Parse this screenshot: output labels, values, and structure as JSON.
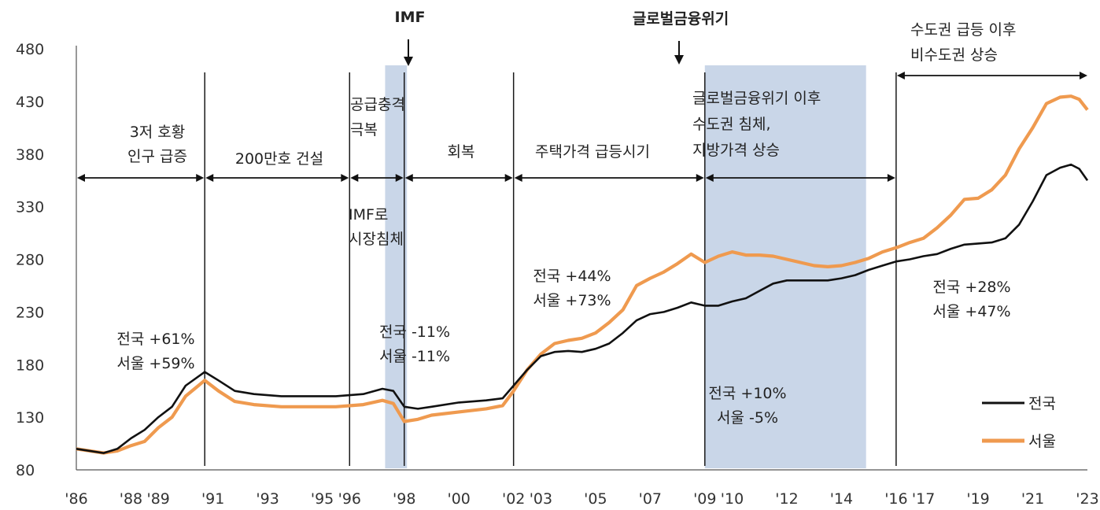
{
  "chart_data": {
    "type": "line",
    "y_ticks": [
      80,
      130,
      180,
      230,
      280,
      330,
      380,
      430,
      480
    ],
    "ylim": [
      80,
      480
    ],
    "x_tick_labels": [
      "'86",
      "'88",
      "'89",
      "'91",
      "'93",
      "'95",
      "'96",
      "'98",
      "'00",
      "'02",
      "'03",
      "'05",
      "'07",
      "'09",
      "'10",
      "'12",
      "'14",
      "'16",
      "'17",
      "'19",
      "'21",
      "'23"
    ],
    "x_tick_years": [
      1986,
      1988,
      1989,
      1991,
      1993,
      1995,
      1996,
      1998,
      2000,
      2002,
      2003,
      2005,
      2007,
      2009,
      2010,
      2012,
      2014,
      2016,
      2017,
      2019,
      2021,
      2023
    ],
    "xlim": [
      1986.0,
      2023.0
    ],
    "dividers": [
      1990.7,
      1996.0,
      1998.0,
      2002.0,
      2009.0,
      2016.0
    ],
    "shaded_ranges": [
      {
        "start": 1997.3,
        "end": 1998.1,
        "color": "#c9d6e8"
      },
      {
        "start": 2009.0,
        "end": 2014.9,
        "color": "#c9d6e8"
      }
    ],
    "colors": {
      "national": "#111111",
      "seoul": "#ef9a4f",
      "shade": "#c9d6e8"
    },
    "series": [
      {
        "name": "전국",
        "points": [
          [
            1986.0,
            100
          ],
          [
            1987.0,
            96
          ],
          [
            1987.5,
            100
          ],
          [
            1988.0,
            110
          ],
          [
            1988.5,
            118
          ],
          [
            1989.0,
            130
          ],
          [
            1989.5,
            140
          ],
          [
            1990.0,
            160
          ],
          [
            1990.7,
            173
          ],
          [
            1991.2,
            165
          ],
          [
            1991.8,
            155
          ],
          [
            1992.5,
            152
          ],
          [
            1993.5,
            150
          ],
          [
            1994.5,
            150
          ],
          [
            1995.5,
            150
          ],
          [
            1996.5,
            152
          ],
          [
            1997.2,
            157
          ],
          [
            1997.6,
            155
          ],
          [
            1998.0,
            140
          ],
          [
            1998.5,
            138
          ],
          [
            1999.0,
            140
          ],
          [
            2000.0,
            144
          ],
          [
            2001.0,
            146
          ],
          [
            2001.6,
            148
          ],
          [
            2002.0,
            160
          ],
          [
            2002.5,
            175
          ],
          [
            2003.0,
            188
          ],
          [
            2003.5,
            192
          ],
          [
            2004.0,
            193
          ],
          [
            2004.5,
            192
          ],
          [
            2005.0,
            195
          ],
          [
            2005.5,
            200
          ],
          [
            2006.0,
            210
          ],
          [
            2006.5,
            222
          ],
          [
            2007.0,
            228
          ],
          [
            2007.5,
            230
          ],
          [
            2008.0,
            234
          ],
          [
            2008.5,
            239
          ],
          [
            2009.0,
            236
          ],
          [
            2009.5,
            236
          ],
          [
            2010.0,
            240
          ],
          [
            2010.5,
            243
          ],
          [
            2011.0,
            250
          ],
          [
            2011.5,
            257
          ],
          [
            2012.0,
            260
          ],
          [
            2012.5,
            260
          ],
          [
            2013.0,
            260
          ],
          [
            2013.5,
            260
          ],
          [
            2014.0,
            262
          ],
          [
            2014.5,
            265
          ],
          [
            2015.0,
            270
          ],
          [
            2015.5,
            274
          ],
          [
            2016.0,
            278
          ],
          [
            2016.5,
            280
          ],
          [
            2017.0,
            283
          ],
          [
            2017.5,
            285
          ],
          [
            2018.0,
            290
          ],
          [
            2018.5,
            294
          ],
          [
            2019.0,
            295
          ],
          [
            2019.5,
            296
          ],
          [
            2020.0,
            300
          ],
          [
            2020.5,
            313
          ],
          [
            2021.0,
            335
          ],
          [
            2021.5,
            360
          ],
          [
            2022.0,
            367
          ],
          [
            2022.4,
            370
          ],
          [
            2022.7,
            366
          ],
          [
            2023.0,
            355
          ]
        ]
      },
      {
        "name": "서울",
        "points": [
          [
            1986.0,
            100
          ],
          [
            1987.0,
            96
          ],
          [
            1987.5,
            98
          ],
          [
            1988.0,
            103
          ],
          [
            1988.5,
            107
          ],
          [
            1989.0,
            120
          ],
          [
            1989.5,
            130
          ],
          [
            1990.0,
            150
          ],
          [
            1990.7,
            165
          ],
          [
            1991.2,
            155
          ],
          [
            1991.8,
            145
          ],
          [
            1992.5,
            142
          ],
          [
            1993.5,
            140
          ],
          [
            1994.5,
            140
          ],
          [
            1995.5,
            140
          ],
          [
            1996.5,
            142
          ],
          [
            1997.2,
            146
          ],
          [
            1997.6,
            143
          ],
          [
            1998.0,
            126
          ],
          [
            1998.5,
            128
          ],
          [
            1999.0,
            132
          ],
          [
            2000.0,
            135
          ],
          [
            2001.0,
            138
          ],
          [
            2001.6,
            141
          ],
          [
            2002.0,
            155
          ],
          [
            2002.5,
            175
          ],
          [
            2003.0,
            190
          ],
          [
            2003.5,
            200
          ],
          [
            2004.0,
            203
          ],
          [
            2004.5,
            205
          ],
          [
            2005.0,
            210
          ],
          [
            2005.5,
            220
          ],
          [
            2006.0,
            232
          ],
          [
            2006.5,
            255
          ],
          [
            2007.0,
            262
          ],
          [
            2007.5,
            268
          ],
          [
            2008.0,
            276
          ],
          [
            2008.5,
            285
          ],
          [
            2009.0,
            277
          ],
          [
            2009.5,
            283
          ],
          [
            2010.0,
            287
          ],
          [
            2010.5,
            284
          ],
          [
            2011.0,
            284
          ],
          [
            2011.5,
            283
          ],
          [
            2012.0,
            280
          ],
          [
            2012.5,
            277
          ],
          [
            2013.0,
            274
          ],
          [
            2013.5,
            273
          ],
          [
            2014.0,
            274
          ],
          [
            2014.5,
            277
          ],
          [
            2015.0,
            281
          ],
          [
            2015.5,
            287
          ],
          [
            2016.0,
            291
          ],
          [
            2016.5,
            296
          ],
          [
            2017.0,
            300
          ],
          [
            2017.5,
            310
          ],
          [
            2018.0,
            322
          ],
          [
            2018.5,
            337
          ],
          [
            2019.0,
            338
          ],
          [
            2019.5,
            346
          ],
          [
            2020.0,
            360
          ],
          [
            2020.5,
            385
          ],
          [
            2021.0,
            405
          ],
          [
            2021.5,
            428
          ],
          [
            2022.0,
            434
          ],
          [
            2022.4,
            435
          ],
          [
            2022.7,
            432
          ],
          [
            2023.0,
            422
          ]
        ]
      }
    ],
    "annotations": {
      "imf_title": "IMF",
      "gfc_title": "글로벌금융위기",
      "p1_line1": "3저 호황",
      "p1_line2": "인구 급증",
      "p2": "200만호 건설",
      "p3_line1": "공급충격",
      "p3_line2": "극복",
      "p4": "회복",
      "p5": "주택가격 급등시기",
      "p6_line1": "글로벌금융위기 이후",
      "p6_line2": "수도권 침체,",
      "p6_line3": "지방가격 상승",
      "p7_line1": "수도권 급등 이후",
      "p7_line2": "비수도권 상승",
      "imf_note_line1": "IMF로",
      "imf_note_line2": "시장침체",
      "s1_line1": "전국 +61%",
      "s1_line2": "서울 +59%",
      "s2_line1": "전국 -11%",
      "s2_line2": "서울 -11%",
      "s3_line1": "전국 +44%",
      "s3_line2": "서울 +73%",
      "s4_line1": "전국 +10%",
      "s4_line2": "서울 -5%",
      "s5_line1": "전국 +28%",
      "s5_line2": "서울 +47%"
    },
    "legend": {
      "national": "전국",
      "seoul": "서울",
      "placement": "bottom-right"
    }
  }
}
